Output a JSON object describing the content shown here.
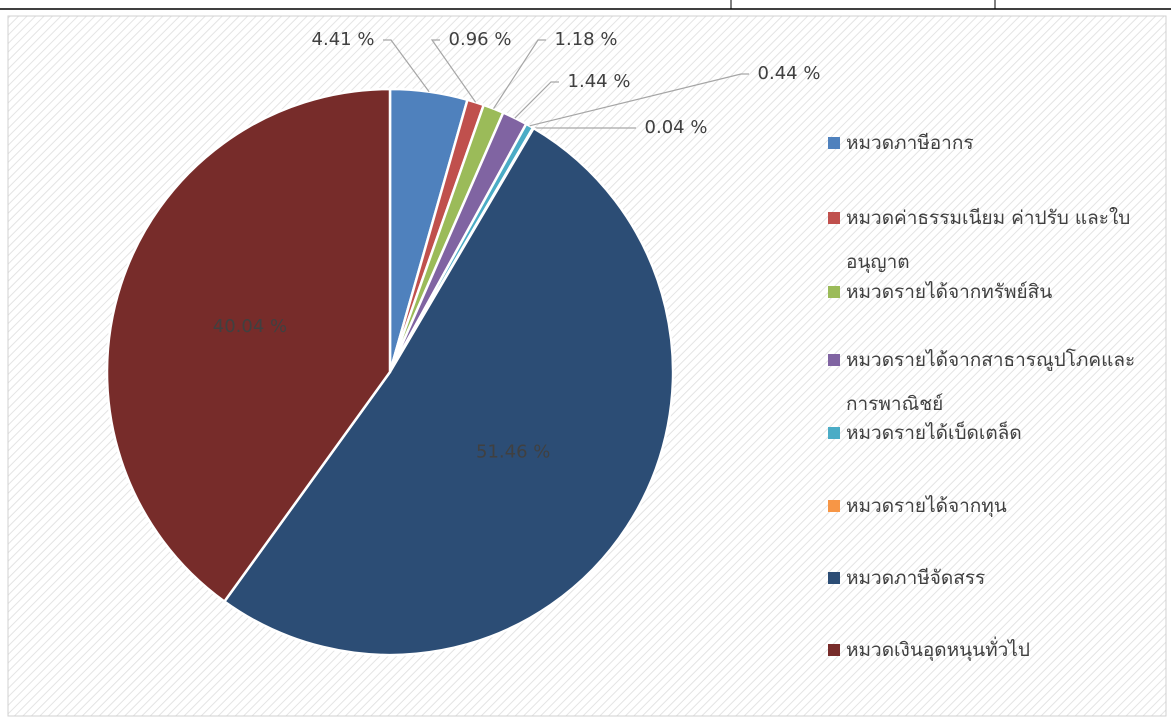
{
  "chart_data": {
    "type": "pie",
    "categories": [
      "หมวดภาษีอากร",
      "หมวดค่าธรรมเนียม ค่าปรับ และใบอนุญาต",
      "หมวดรายได้จากทรัพย์สิน",
      "หมวดรายได้จากสาธารณูปโภคและการพาณิชย์",
      "หมวดรายได้เบ็ดเตล็ด",
      "หมวดรายได้จากทุน",
      "หมวดภาษีจัดสรร",
      "หมวดเงินอุดหนุนทั่วไป"
    ],
    "values": [
      4.41,
      0.96,
      1.18,
      1.44,
      0.44,
      0.04,
      51.46,
      40.04
    ],
    "value_labels": [
      "4.41 %",
      "0.96 %",
      "1.18 %",
      "1.44 %",
      "0.44 %",
      "0.04 %",
      "51.46 %",
      "40.04 %"
    ],
    "colors": [
      "#4f81bd",
      "#c0504d",
      "#9bbb59",
      "#8064a2",
      "#4bacc6",
      "#f79646",
      "#2c4d75",
      "#772c2a"
    ],
    "legend": "right"
  }
}
